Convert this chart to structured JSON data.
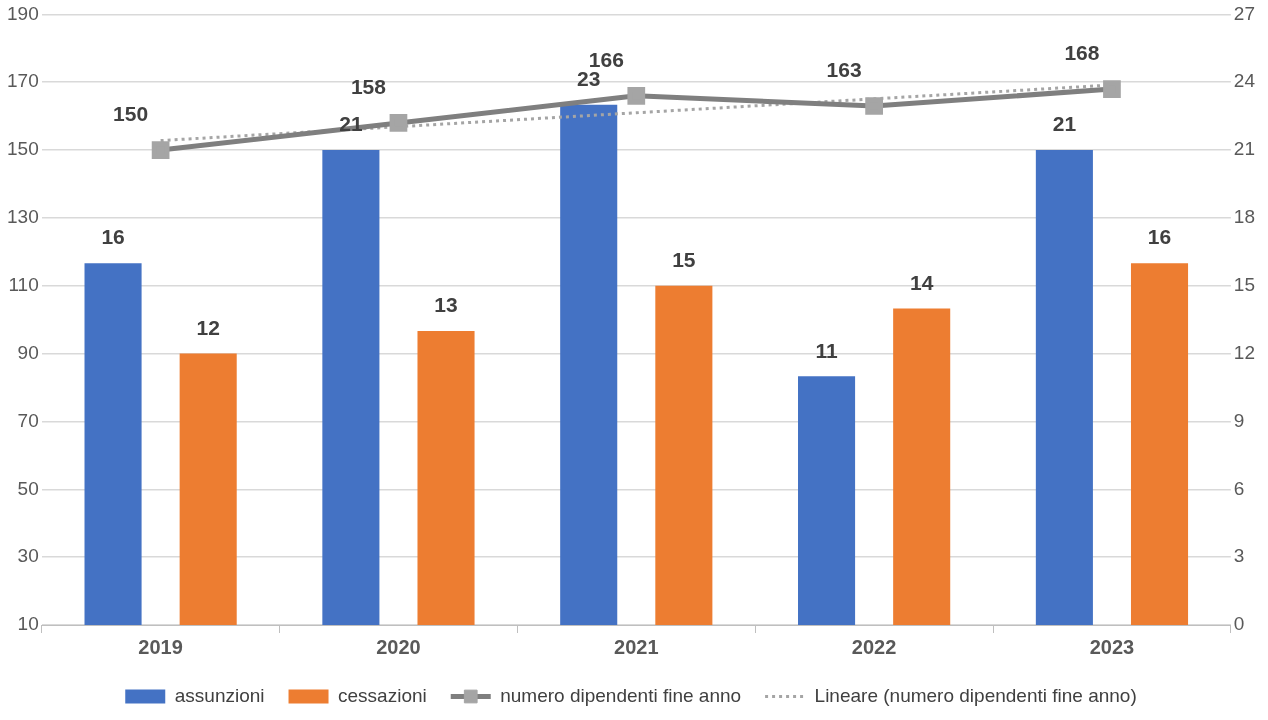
{
  "chart_data": {
    "type": "bar",
    "categories": [
      "2019",
      "2020",
      "2021",
      "2022",
      "2023"
    ],
    "series": [
      {
        "name": "assunzioni",
        "color": "#4472c4",
        "axis": "y2",
        "values": [
          16,
          21,
          23,
          11,
          21
        ],
        "value_labels": [
          "16",
          "21",
          "23",
          "11",
          "21"
        ]
      },
      {
        "name": "cessazioni",
        "color": "#ed7d31",
        "axis": "y2",
        "values": [
          12,
          13,
          15,
          14,
          16
        ],
        "value_labels": [
          "12",
          "13",
          "15",
          "14",
          "16"
        ]
      },
      {
        "name": "numero dipendenti fine anno",
        "color": "#7f7f7f",
        "type": "line",
        "axis": "y",
        "marker": "square",
        "line_style": "solid",
        "values": [
          150,
          158,
          166,
          163,
          168
        ],
        "value_labels": [
          "150",
          "158",
          "166",
          "163",
          "168"
        ]
      },
      {
        "name": "Lineare (numero dipendenti fine anno)",
        "color": "#a5a5a5",
        "type": "line",
        "axis": "y",
        "marker": "none",
        "line_style": "dotted",
        "values": [
          152.8,
          156.9,
          161,
          165.1,
          169.2
        ]
      }
    ],
    "ylim": [
      10,
      190
    ],
    "yticks": [
      10,
      30,
      50,
      70,
      90,
      110,
      130,
      150,
      170,
      190
    ],
    "y2lim": [
      0,
      27
    ],
    "y2ticks": [
      0,
      3,
      6,
      9,
      12,
      15,
      18,
      21,
      24,
      27
    ],
    "grid": "y",
    "legend": "bottom"
  }
}
